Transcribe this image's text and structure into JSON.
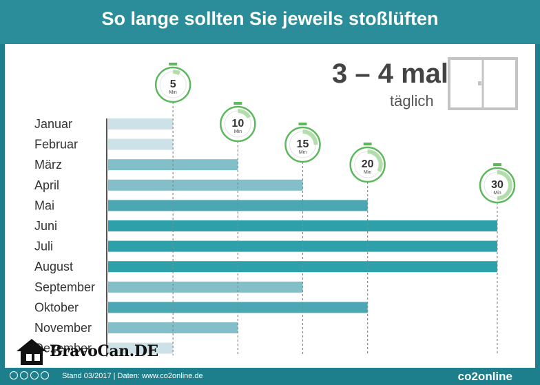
{
  "title": "So lange sollten Sie jeweils stoßlüften",
  "headline": {
    "big": "3 – 4 mal",
    "sub": "täglich"
  },
  "footer": {
    "meta": "Stand 03/2017   |   Daten: www.co2online.de",
    "brand": "co2online"
  },
  "watermark": {
    "text": "BravoCan.DE"
  },
  "colors": {
    "header": "#2a8d99",
    "band_dark": "#2ea0aa",
    "band_mid": "#83bfc8",
    "band_light": "#cde2e7",
    "timer": "#5cb85c"
  },
  "icons": {
    "window": "window-icon",
    "timer": "stopwatch-icon",
    "house": "house-icon"
  },
  "chart_data": {
    "type": "bar",
    "orientation": "horizontal",
    "categories": [
      "Januar",
      "Februar",
      "März",
      "April",
      "Mai",
      "Juni",
      "Juli",
      "August",
      "September",
      "Oktober",
      "November",
      "Dezember"
    ],
    "values": [
      5,
      5,
      10,
      15,
      20,
      30,
      30,
      30,
      15,
      20,
      10,
      5
    ],
    "unit": "Min",
    "timer_markers": [
      {
        "value": 5,
        "label": "5",
        "unit": "Min"
      },
      {
        "value": 10,
        "label": "10",
        "unit": "Min"
      },
      {
        "value": 15,
        "label": "15",
        "unit": "Min"
      },
      {
        "value": 20,
        "label": "20",
        "unit": "Min"
      },
      {
        "value": 30,
        "label": "30",
        "unit": "Min"
      }
    ],
    "xlim": [
      0,
      30
    ]
  }
}
